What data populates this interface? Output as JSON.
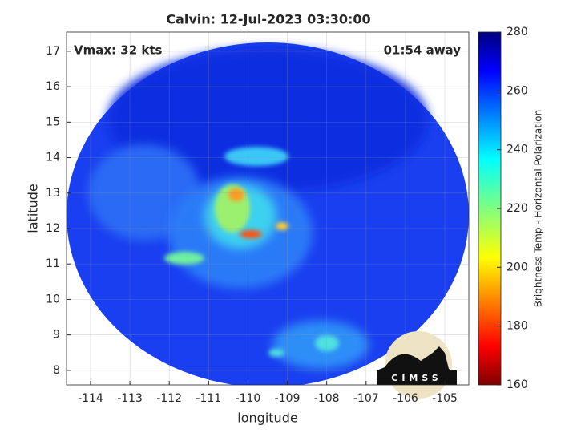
{
  "map": {
    "title": "Calvin: 12-Jul-2023 03:30:00",
    "annotations": {
      "vmax": "Vmax: 32 kts",
      "time_away": "01:54 away"
    },
    "x_label": "longitude",
    "y_label": "latitude",
    "xlim": [
      -114.61,
      -104.39
    ],
    "ylim": [
      7.59,
      17.54
    ],
    "xticks": [
      -114,
      -113,
      -112,
      -111,
      -110,
      -109,
      -108,
      -107,
      -106,
      -105
    ],
    "yticks": [
      8,
      9,
      10,
      11,
      12,
      13,
      14,
      15,
      16,
      17
    ],
    "grid": true,
    "colorbar": {
      "label": "Brightness Temp - Horizontal Polarization",
      "lim": [
        160,
        280
      ],
      "ticks": [
        160,
        180,
        200,
        220,
        240,
        260,
        280
      ]
    },
    "logo": "CIMSS"
  }
}
